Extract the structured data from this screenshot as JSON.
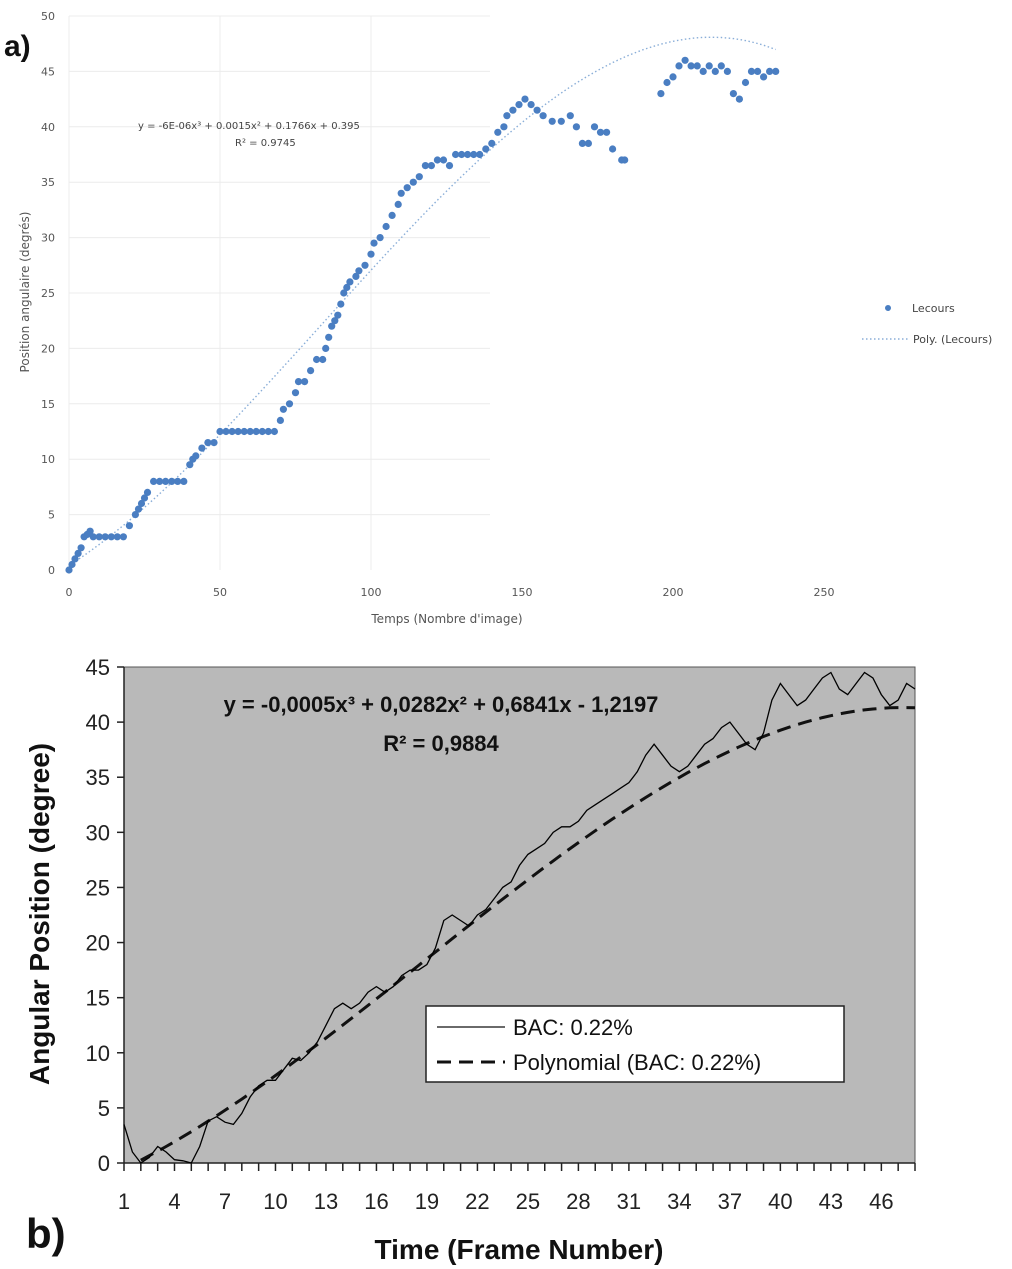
{
  "chart_data": [
    {
      "type": "scatter",
      "panel_label": "a)",
      "xlabel": "Temps (Nombre d'image)",
      "ylabel": "Position angulaire (degrés)",
      "xlim": [
        0,
        250
      ],
      "ylim": [
        0,
        50
      ],
      "x_ticks": [
        "0",
        "50",
        "100",
        "150",
        "200",
        "250"
      ],
      "y_ticks": [
        "0",
        "5",
        "10",
        "15",
        "20",
        "25",
        "30",
        "35",
        "40",
        "45",
        "50"
      ],
      "grid": true,
      "legend_position": "right",
      "equation": "y = -6E-06x³ + 0.0015x² + 0.1766x + 0.395",
      "r_squared": "R² = 0.9745",
      "colors": {
        "points": "#4a7ec2",
        "trend": "#8aaed8"
      },
      "series": [
        {
          "name": "Lecours",
          "style": "markers",
          "points": [
            [
              0,
              0
            ],
            [
              1,
              0.5
            ],
            [
              2,
              1
            ],
            [
              3,
              1.5
            ],
            [
              4,
              2
            ],
            [
              5,
              3
            ],
            [
              6,
              3.2
            ],
            [
              7,
              3.5
            ],
            [
              8,
              3
            ],
            [
              10,
              3
            ],
            [
              12,
              3
            ],
            [
              14,
              3
            ],
            [
              16,
              3
            ],
            [
              18,
              3
            ],
            [
              20,
              4
            ],
            [
              22,
              5
            ],
            [
              23,
              5.5
            ],
            [
              24,
              6
            ],
            [
              25,
              6.5
            ],
            [
              26,
              7
            ],
            [
              28,
              8
            ],
            [
              30,
              8
            ],
            [
              32,
              8
            ],
            [
              34,
              8
            ],
            [
              36,
              8
            ],
            [
              38,
              8
            ],
            [
              40,
              9.5
            ],
            [
              41,
              10
            ],
            [
              42,
              10.3
            ],
            [
              44,
              11
            ],
            [
              46,
              11.5
            ],
            [
              48,
              11.5
            ],
            [
              50,
              12.5
            ],
            [
              52,
              12.5
            ],
            [
              54,
              12.5
            ],
            [
              56,
              12.5
            ],
            [
              58,
              12.5
            ],
            [
              60,
              12.5
            ],
            [
              62,
              12.5
            ],
            [
              64,
              12.5
            ],
            [
              66,
              12.5
            ],
            [
              68,
              12.5
            ],
            [
              70,
              13.5
            ],
            [
              71,
              14.5
            ],
            [
              73,
              15
            ],
            [
              75,
              16
            ],
            [
              76,
              17
            ],
            [
              78,
              17
            ],
            [
              80,
              18
            ],
            [
              82,
              19
            ],
            [
              84,
              19
            ],
            [
              85,
              20
            ],
            [
              86,
              21
            ],
            [
              87,
              22
            ],
            [
              88,
              22.5
            ],
            [
              89,
              23
            ],
            [
              90,
              24
            ],
            [
              91,
              25
            ],
            [
              92,
              25.5
            ],
            [
              93,
              26
            ],
            [
              95,
              26.5
            ],
            [
              96,
              27
            ],
            [
              98,
              27.5
            ],
            [
              100,
              28.5
            ],
            [
              101,
              29.5
            ],
            [
              103,
              30
            ],
            [
              105,
              31
            ],
            [
              107,
              32
            ],
            [
              109,
              33
            ],
            [
              110,
              34
            ],
            [
              112,
              34.5
            ],
            [
              114,
              35
            ],
            [
              116,
              35.5
            ],
            [
              118,
              36.5
            ],
            [
              120,
              36.5
            ],
            [
              122,
              37
            ],
            [
              124,
              37
            ],
            [
              126,
              36.5
            ],
            [
              128,
              37.5
            ],
            [
              130,
              37.5
            ],
            [
              132,
              37.5
            ],
            [
              134,
              37.5
            ],
            [
              136,
              37.5
            ],
            [
              138,
              38
            ],
            [
              140,
              38.5
            ],
            [
              142,
              39.5
            ],
            [
              144,
              40
            ],
            [
              145,
              41
            ],
            [
              147,
              41.5
            ],
            [
              149,
              42
            ],
            [
              151,
              42.5
            ],
            [
              153,
              42
            ],
            [
              155,
              41.5
            ],
            [
              157,
              41
            ],
            [
              160,
              40.5
            ],
            [
              163,
              40.5
            ],
            [
              166,
              41
            ],
            [
              168,
              40
            ],
            [
              170,
              38.5
            ],
            [
              172,
              38.5
            ],
            [
              174,
              40
            ],
            [
              176,
              39.5
            ],
            [
              178,
              39.5
            ],
            [
              180,
              38
            ],
            [
              183,
              37
            ],
            [
              184,
              37
            ],
            [
              196,
              43
            ],
            [
              198,
              44
            ],
            [
              200,
              44.5
            ],
            [
              202,
              45.5
            ],
            [
              204,
              46
            ],
            [
              206,
              45.5
            ],
            [
              208,
              45.5
            ],
            [
              210,
              45
            ],
            [
              212,
              45.5
            ],
            [
              214,
              45
            ],
            [
              216,
              45.5
            ],
            [
              218,
              45
            ],
            [
              220,
              43
            ],
            [
              222,
              42.5
            ],
            [
              224,
              44
            ],
            [
              226,
              45
            ],
            [
              228,
              45
            ],
            [
              230,
              44.5
            ],
            [
              232,
              45
            ],
            [
              234,
              45
            ]
          ]
        },
        {
          "name": "Poly. (Lecours)",
          "style": "dotted-trendline",
          "coefficients": [
            -6e-06,
            0.0015,
            0.1766,
            0.395
          ],
          "x_range": [
            0,
            234
          ]
        }
      ]
    },
    {
      "type": "line",
      "panel_label": "b)",
      "xlabel": "Time (Frame Number)",
      "ylabel": "Angular Position (degree)",
      "xlim": [
        1,
        48
      ],
      "ylim": [
        0,
        45
      ],
      "x_ticks": [
        "1",
        "4",
        "7",
        "10",
        "13",
        "16",
        "19",
        "22",
        "25",
        "28",
        "31",
        "34",
        "37",
        "40",
        "43",
        "46"
      ],
      "y_ticks": [
        "0",
        "5",
        "10",
        "15",
        "20",
        "25",
        "30",
        "35",
        "40",
        "45"
      ],
      "grid": false,
      "legend_position": "bottom-right",
      "equation": "y = -0,0005x³ + 0,0282x² + 0,6841x - 1,2197",
      "r_squared": "R² = 0,9884",
      "colors": {
        "plot_background": "#b9b9b9",
        "line": "#000000"
      },
      "series": [
        {
          "name": "BAC: 0.22%",
          "style": "solid",
          "x": [
            1,
            1.5,
            2,
            2.5,
            3,
            3.5,
            4,
            4.5,
            5,
            5.5,
            6,
            6.5,
            7,
            7.5,
            8,
            8.5,
            9,
            9.5,
            10,
            10.5,
            11,
            11.5,
            12,
            12.5,
            13,
            13.5,
            14,
            14.5,
            15,
            15.5,
            16,
            16.5,
            17,
            17.5,
            18,
            18.5,
            19,
            19.5,
            20,
            20.5,
            21,
            21.5,
            22,
            22.5,
            23,
            23.5,
            24,
            24.5,
            25,
            25.5,
            26,
            26.5,
            27,
            27.5,
            28,
            28.5,
            29,
            29.5,
            30,
            30.5,
            31,
            31.5,
            32,
            32.5,
            33,
            33.5,
            34,
            34.5,
            35,
            35.5,
            36,
            36.5,
            37,
            37.5,
            38,
            38.5,
            39,
            39.5,
            40,
            40.5,
            41,
            41.5,
            42,
            42.5,
            43,
            43.5,
            44,
            44.5,
            45,
            45.5,
            46,
            46.5,
            47,
            47.5,
            48
          ],
          "y": [
            3.5,
            1,
            0,
            0.5,
            1.5,
            1,
            0.3,
            0.2,
            0,
            1.5,
            3.8,
            4.2,
            3.7,
            3.5,
            4.5,
            6,
            7,
            7.5,
            7.5,
            8.5,
            9.5,
            9.3,
            10,
            11,
            12.5,
            14,
            14.5,
            14,
            14.5,
            15.5,
            16,
            15.5,
            16,
            17,
            17.5,
            17.5,
            18,
            19.5,
            22,
            22.5,
            22,
            21.5,
            22.5,
            23,
            24,
            25,
            25.5,
            27,
            28,
            28.5,
            29,
            30,
            30.5,
            30.5,
            31,
            32,
            32.5,
            33,
            33.5,
            34,
            34.5,
            35.5,
            37,
            38,
            37,
            36,
            35.5,
            36,
            37,
            38,
            38.5,
            39.5,
            40,
            39,
            38,
            37.5,
            39,
            42,
            43.5,
            42.5,
            41.5,
            42,
            43,
            44,
            44.5,
            43,
            42.5,
            43.5,
            44.5,
            44,
            42.5,
            41.5,
            42,
            43.5,
            43
          ]
        },
        {
          "name": "Polynomial (BAC: 0.22%)",
          "style": "dashed-trendline",
          "coefficients": [
            -0.0005,
            0.0282,
            0.6841,
            -1.2197
          ],
          "x_range": [
            2,
            48
          ]
        }
      ]
    }
  ]
}
